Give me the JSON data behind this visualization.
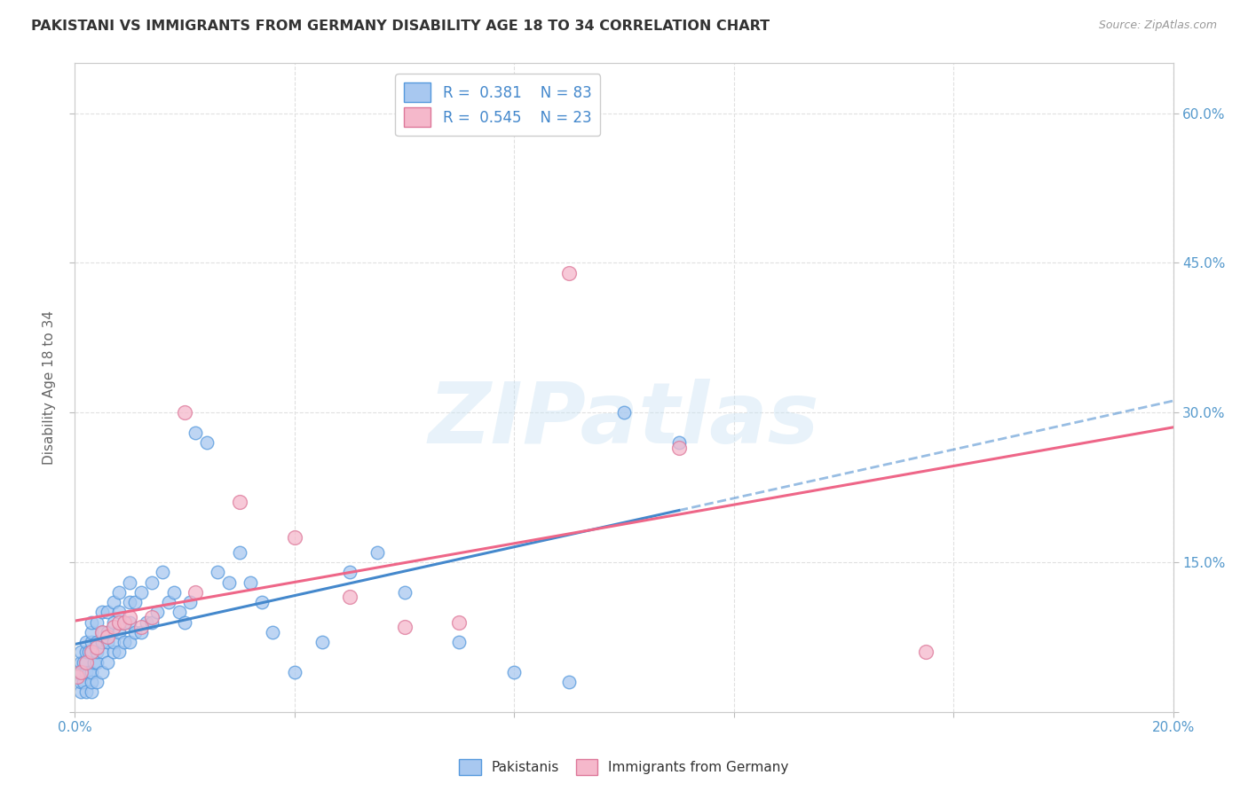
{
  "title": "PAKISTANI VS IMMIGRANTS FROM GERMANY DISABILITY AGE 18 TO 34 CORRELATION CHART",
  "source": "Source: ZipAtlas.com",
  "ylabel": "Disability Age 18 to 34",
  "xlim": [
    0.0,
    0.2
  ],
  "ylim": [
    0.0,
    0.65
  ],
  "xticks": [
    0.0,
    0.04,
    0.08,
    0.12,
    0.16,
    0.2
  ],
  "yticks": [
    0.0,
    0.15,
    0.3,
    0.45,
    0.6
  ],
  "background_color": "#ffffff",
  "grid_color": "#e0e0e0",
  "watermark_text": "ZIPatlas",
  "blue_color": "#a8c8f0",
  "blue_edge_color": "#5599dd",
  "pink_color": "#f5b8cb",
  "pink_edge_color": "#dd7799",
  "blue_line_color": "#4488cc",
  "pink_line_color": "#ee6688",
  "legend_R1": "0.381",
  "legend_N1": "83",
  "legend_R2": "0.545",
  "legend_N2": "23",
  "blue_scatter_x": [
    0.0005,
    0.001,
    0.001,
    0.001,
    0.001,
    0.001,
    0.0015,
    0.0015,
    0.002,
    0.002,
    0.002,
    0.002,
    0.002,
    0.0025,
    0.0025,
    0.003,
    0.003,
    0.003,
    0.003,
    0.003,
    0.003,
    0.003,
    0.0035,
    0.004,
    0.004,
    0.004,
    0.004,
    0.004,
    0.005,
    0.005,
    0.005,
    0.005,
    0.005,
    0.006,
    0.006,
    0.006,
    0.006,
    0.007,
    0.007,
    0.007,
    0.007,
    0.008,
    0.008,
    0.008,
    0.008,
    0.009,
    0.009,
    0.01,
    0.01,
    0.01,
    0.01,
    0.011,
    0.011,
    0.012,
    0.012,
    0.013,
    0.014,
    0.014,
    0.015,
    0.016,
    0.017,
    0.018,
    0.019,
    0.02,
    0.021,
    0.022,
    0.024,
    0.026,
    0.028,
    0.03,
    0.032,
    0.034,
    0.036,
    0.04,
    0.045,
    0.05,
    0.055,
    0.06,
    0.07,
    0.08,
    0.09,
    0.1,
    0.11
  ],
  "blue_scatter_y": [
    0.04,
    0.02,
    0.03,
    0.04,
    0.05,
    0.06,
    0.03,
    0.05,
    0.02,
    0.04,
    0.05,
    0.06,
    0.07,
    0.04,
    0.06,
    0.02,
    0.03,
    0.04,
    0.06,
    0.07,
    0.08,
    0.09,
    0.05,
    0.03,
    0.05,
    0.06,
    0.07,
    0.09,
    0.04,
    0.06,
    0.07,
    0.08,
    0.1,
    0.05,
    0.07,
    0.08,
    0.1,
    0.06,
    0.07,
    0.09,
    0.11,
    0.06,
    0.08,
    0.1,
    0.12,
    0.07,
    0.09,
    0.07,
    0.09,
    0.11,
    0.13,
    0.08,
    0.11,
    0.08,
    0.12,
    0.09,
    0.09,
    0.13,
    0.1,
    0.14,
    0.11,
    0.12,
    0.1,
    0.09,
    0.11,
    0.28,
    0.27,
    0.14,
    0.13,
    0.16,
    0.13,
    0.11,
    0.08,
    0.04,
    0.07,
    0.14,
    0.16,
    0.12,
    0.07,
    0.04,
    0.03,
    0.3,
    0.27
  ],
  "pink_scatter_x": [
    0.0005,
    0.001,
    0.002,
    0.003,
    0.004,
    0.005,
    0.006,
    0.007,
    0.008,
    0.009,
    0.01,
    0.012,
    0.014,
    0.02,
    0.022,
    0.03,
    0.04,
    0.05,
    0.06,
    0.07,
    0.09,
    0.11,
    0.155
  ],
  "pink_scatter_y": [
    0.035,
    0.04,
    0.05,
    0.06,
    0.065,
    0.08,
    0.075,
    0.085,
    0.09,
    0.09,
    0.095,
    0.085,
    0.095,
    0.3,
    0.12,
    0.21,
    0.175,
    0.115,
    0.085,
    0.09,
    0.44,
    0.265,
    0.06
  ]
}
